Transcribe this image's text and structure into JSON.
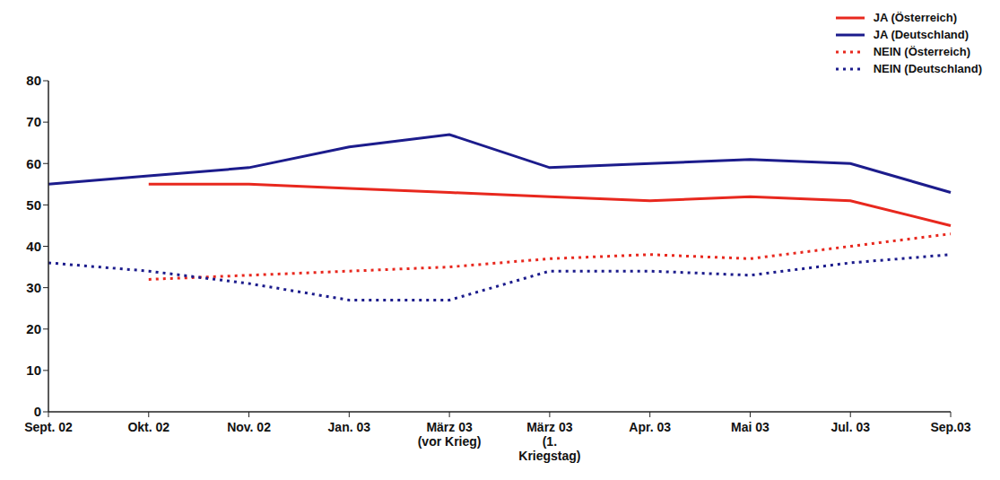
{
  "chart_data": {
    "type": "line",
    "categories": [
      "Sept. 02",
      "Okt. 02",
      "Nov. 02",
      "Jan. 03",
      "März 03 (vor Krieg)",
      "März 03 (1. Kriegstag)",
      "Apr. 03",
      "Mai 03",
      "Jul. 03",
      "Sep.03"
    ],
    "series": [
      {
        "name": "JA (Österreich)",
        "color": "#e8281e",
        "line_style": "solid",
        "marker": "none",
        "values": [
          null,
          55,
          55,
          54,
          53,
          52,
          51,
          52,
          51,
          45
        ]
      },
      {
        "name": "JA (Deutschland)",
        "color": "#1c1c8c",
        "line_style": "solid",
        "marker": "none",
        "values": [
          55,
          57,
          59,
          64,
          67,
          59,
          60,
          61,
          60,
          53
        ]
      },
      {
        "name": "NEIN (Österreich)",
        "color": "#e8281e",
        "line_style": "dotted",
        "marker": "none",
        "values": [
          null,
          32,
          33,
          34,
          35,
          37,
          38,
          37,
          40,
          43
        ]
      },
      {
        "name": "NEIN (Deutschland)",
        "color": "#1c1c8c",
        "line_style": "dotted",
        "marker": "none",
        "values": [
          36,
          34,
          31,
          27,
          27,
          34,
          34,
          33,
          36,
          38
        ]
      }
    ],
    "ylim": [
      0,
      80
    ],
    "yticks": [
      0,
      10,
      20,
      30,
      40,
      50,
      60,
      70,
      80
    ],
    "grid": false,
    "legend": "upper right"
  }
}
